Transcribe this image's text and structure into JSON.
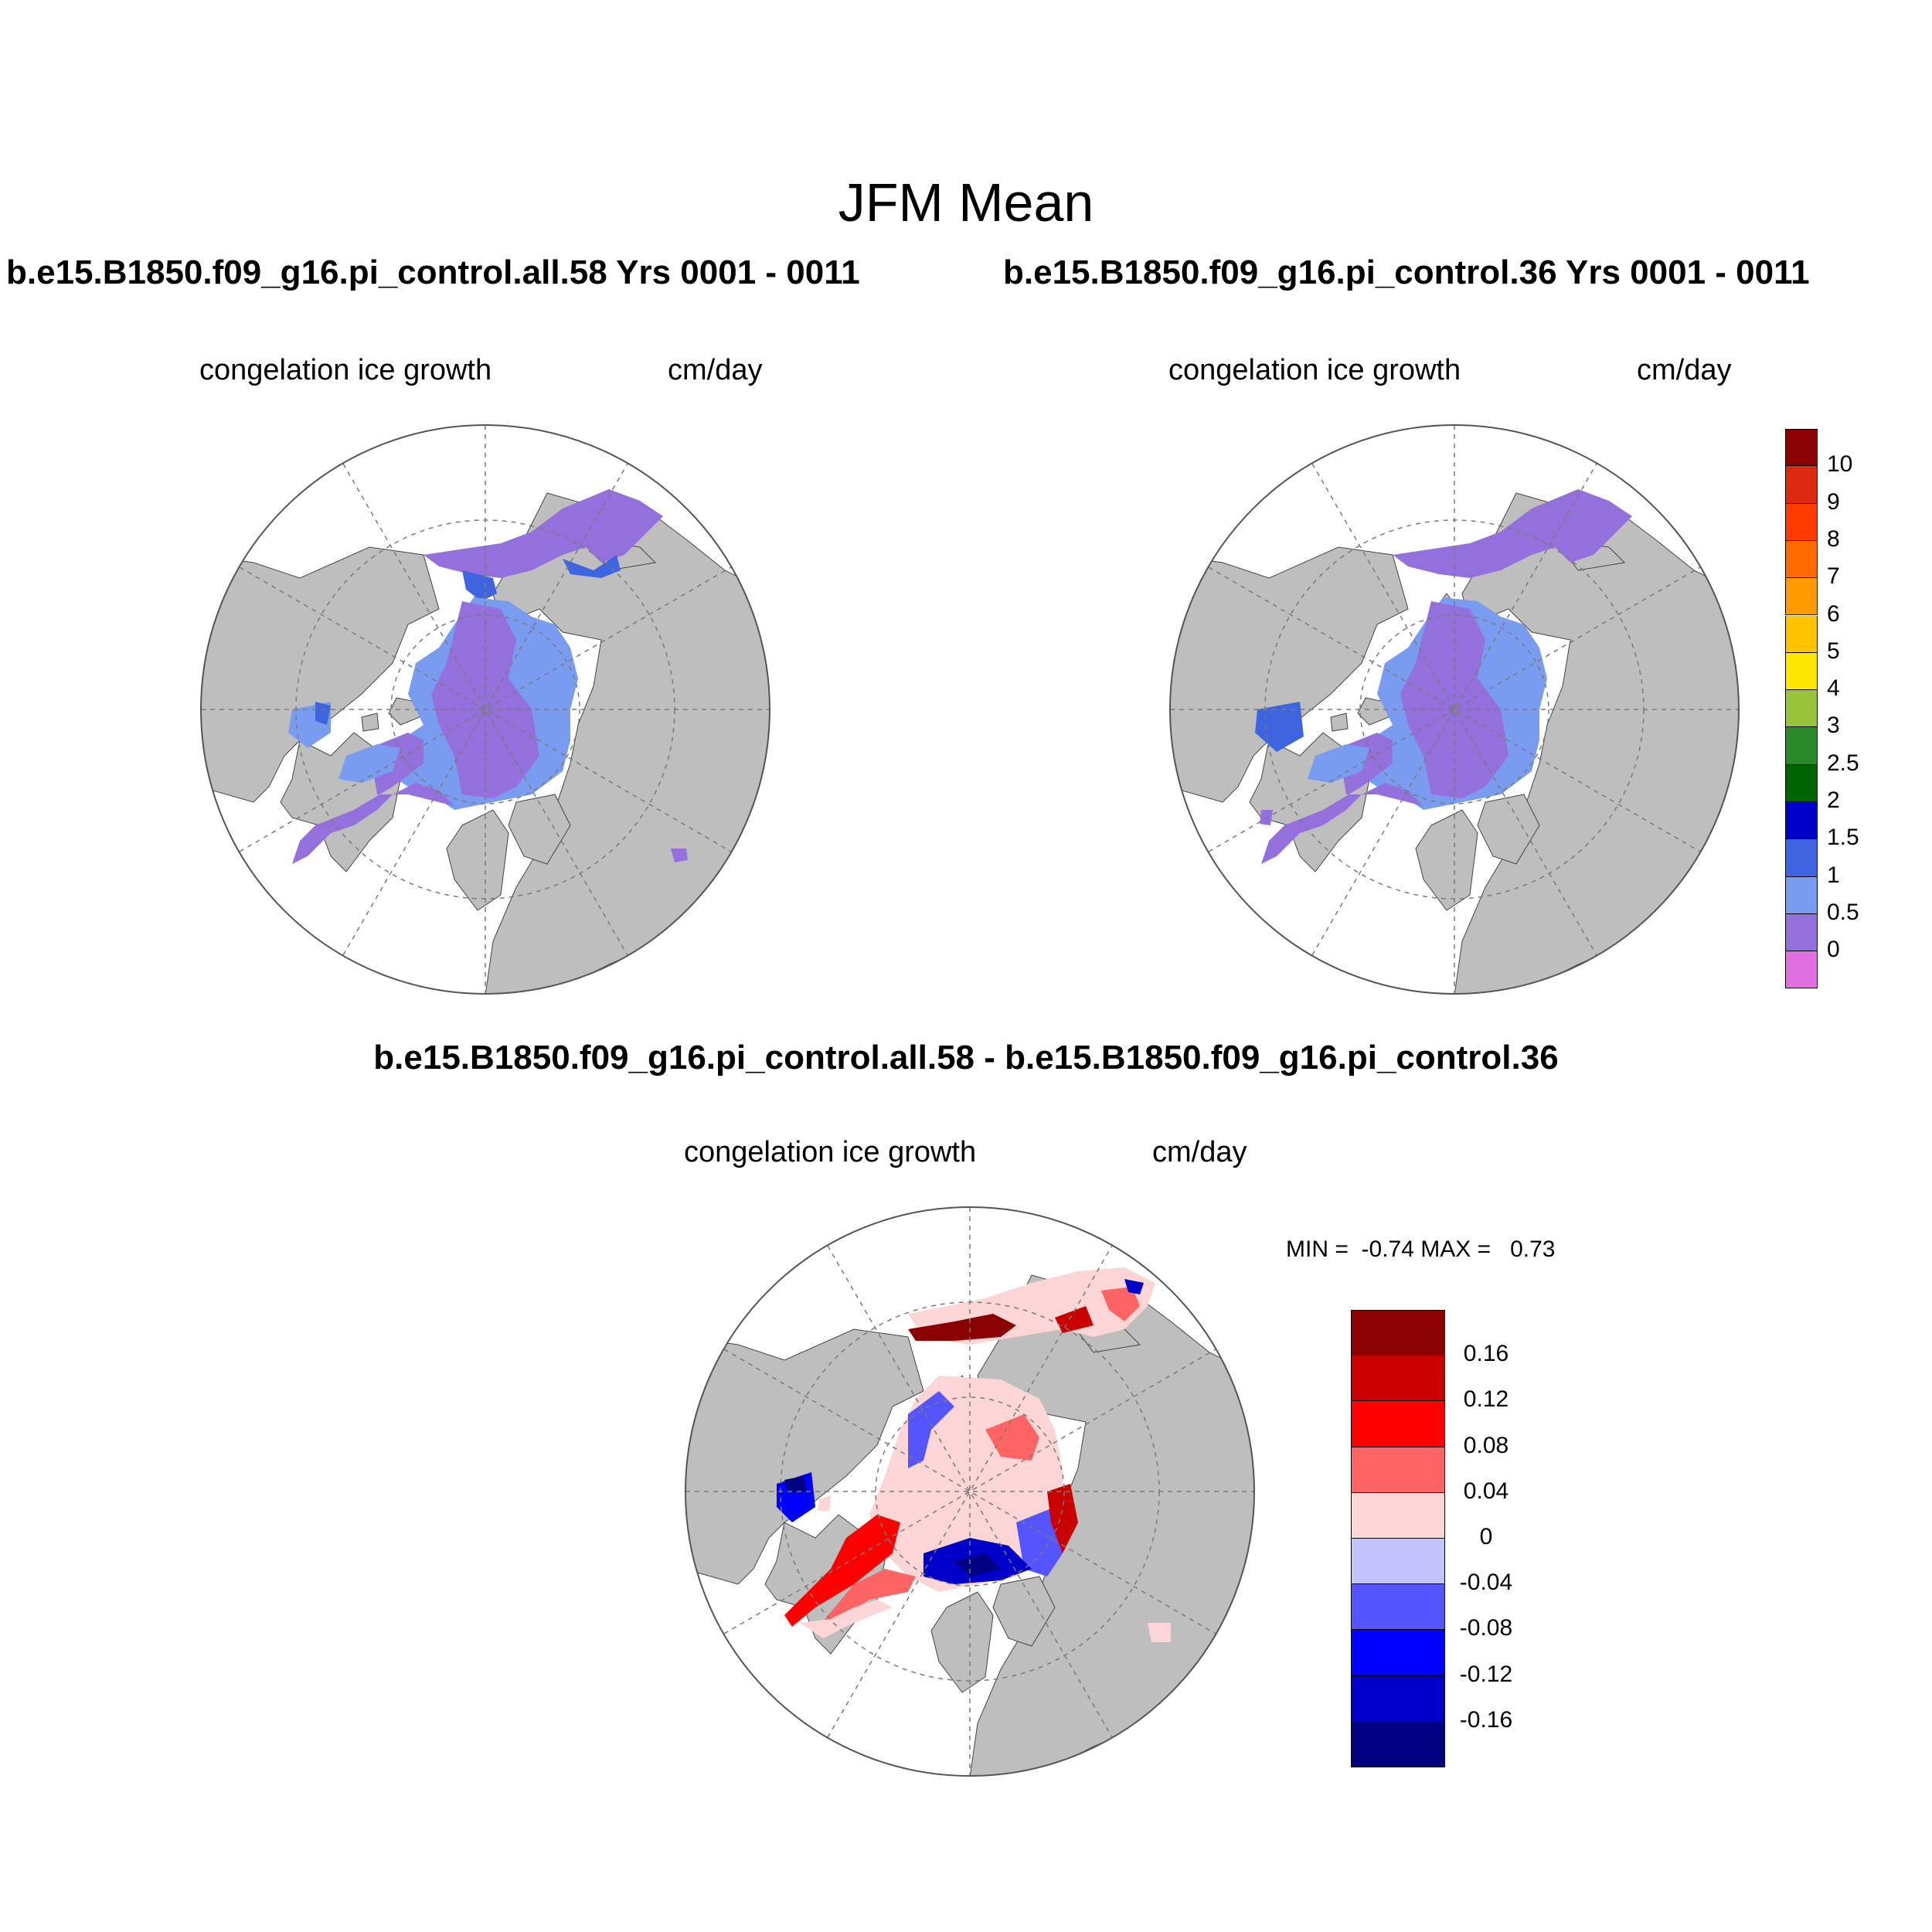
{
  "title": "JFM Mean",
  "panels": [
    {
      "id": "left",
      "run_label": "b.e15.B1850.f09_g16.pi_control.all.58  Yrs 0001 - 0011",
      "variable": "congelation ice growth",
      "units": "cm/day"
    },
    {
      "id": "right",
      "run_label": "b.e15.B1850.f09_g16.pi_control.36  Yrs 0001 - 0011",
      "variable": "congelation ice growth",
      "units": "cm/day"
    },
    {
      "id": "difference",
      "run_label": "b.e15.B1850.f09_g16.pi_control.all.58 - b.e15.B1850.f09_g16.pi_control.36",
      "variable": "congelation ice growth",
      "units": "cm/day",
      "stats_text": "MIN =  -0.74 MAX =   0.73"
    }
  ],
  "legend_main": {
    "labels": [
      "10",
      "9",
      "8",
      "7",
      "6",
      "5",
      "4",
      "3",
      "2.5",
      "2",
      "1.5",
      "1",
      "0.5",
      "0"
    ],
    "colors": [
      "#8b0000",
      "#dd2a0e",
      "#ff3b00",
      "#ff6a00",
      "#ff9a00",
      "#ffc300",
      "#ffe600",
      "#98c43a",
      "#2a8a2a",
      "#006400",
      "#0000c8",
      "#3f64e0",
      "#7a9cf0",
      "#9370db",
      "#e070e0"
    ]
  },
  "legend_diff": {
    "labels": [
      "0.16",
      "0.12",
      "0.08",
      "0.04",
      "0",
      "-0.04",
      "-0.08",
      "-0.12",
      "-0.16"
    ],
    "colors": [
      "#8b0000",
      "#c80000",
      "#ff0000",
      "#ff6464",
      "#fcd6d6",
      "#c4c4fc",
      "#5555ff",
      "#0000ff",
      "#0000c8",
      "#000080"
    ]
  },
  "map_colors": {
    "land": "#bebebe",
    "ocean": "#ffffff",
    "grid": "#7a7a7a"
  }
}
